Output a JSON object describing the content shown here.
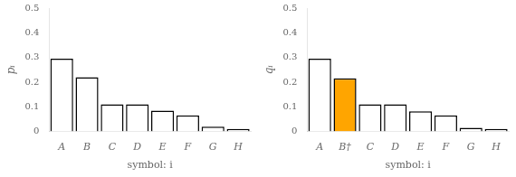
{
  "chart_data": [
    {
      "type": "bar",
      "categories": [
        "A",
        "B",
        "C",
        "D",
        "E",
        "F",
        "G",
        "H"
      ],
      "values": [
        0.295,
        0.22,
        0.11,
        0.11,
        0.085,
        0.065,
        0.02,
        0.01
      ],
      "color": "white",
      "x_label": "symbol: i",
      "y_label": "pᵢ",
      "ylim": [
        0,
        0.5
      ],
      "yticks": [
        0.0,
        0.1,
        0.2,
        0.3,
        0.4,
        0.5
      ],
      "grid": false
    },
    {
      "type": "bar",
      "categories": [
        "A",
        "B†",
        "C",
        "D",
        "E",
        "F",
        "G",
        "H"
      ],
      "values": [
        0.295,
        0.215,
        0.11,
        0.11,
        0.082,
        0.065,
        0.015,
        0.01
      ],
      "colors": [
        "white",
        "#FFA500",
        "white",
        "white",
        "white",
        "white",
        "white",
        "white"
      ],
      "x_label": "symbol: i",
      "y_label": "qᵢ",
      "ylim": [
        0,
        0.5
      ],
      "yticks": [
        0.0,
        0.1,
        0.2,
        0.3,
        0.4,
        0.5
      ],
      "grid": false
    }
  ]
}
